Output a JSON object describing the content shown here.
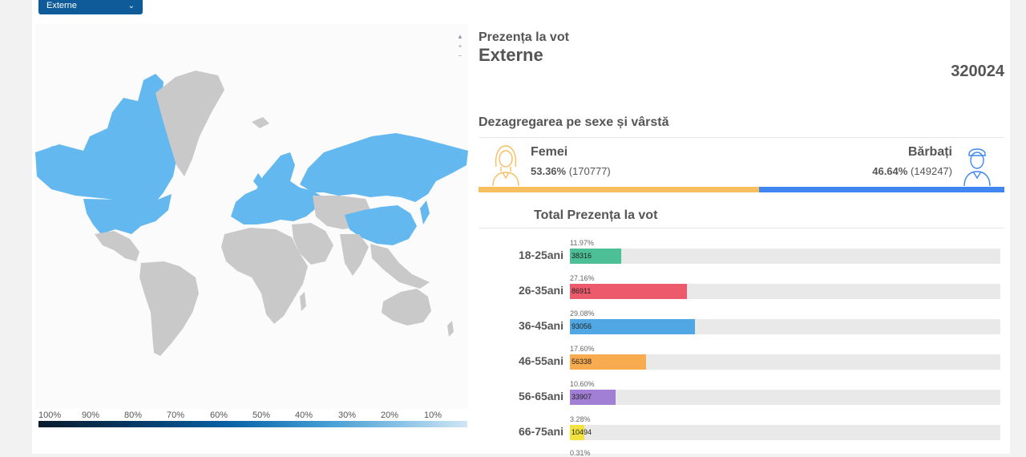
{
  "filter": {
    "selected": "Externe"
  },
  "header": {
    "title": "Prezența la vot",
    "subtitle": "Externe",
    "total": "320024"
  },
  "gender": {
    "section_title": "Dezagregarea pe sexe și vârstă",
    "female": {
      "label": "Femei",
      "pct": "53.36%",
      "count": "(170777)",
      "icon": "woman-avatar-icon",
      "color": "#f6be5e"
    },
    "male": {
      "label": "Bărbați",
      "pct": "46.64%",
      "count": "(149247)",
      "icon": "man-avatar-icon",
      "color": "#3f86f0"
    },
    "female_share": 53.36
  },
  "age": {
    "section_title": "Total Prezența la vot",
    "groups": [
      {
        "label": "18-25ani",
        "pct": "11.97%",
        "value": "38316",
        "share": 11.97,
        "color": "#4cbf97"
      },
      {
        "label": "26-35ani",
        "pct": "27.16%",
        "value": "86911",
        "share": 27.16,
        "color": "#ec5a6b"
      },
      {
        "label": "36-45ani",
        "pct": "29.08%",
        "value": "93056",
        "share": 29.08,
        "color": "#50a7e3"
      },
      {
        "label": "46-55ani",
        "pct": "17.60%",
        "value": "56338",
        "share": 17.6,
        "color": "#f9ab50"
      },
      {
        "label": "56-65ani",
        "pct": "10.60%",
        "value": "33907",
        "share": 10.6,
        "color": "#a17fd4"
      },
      {
        "label": "66-75ani",
        "pct": "3.28%",
        "value": "10494",
        "share": 3.28,
        "color": "#f2e23d"
      }
    ],
    "next_pct": "0.31%"
  },
  "map": {
    "legend": [
      "100%",
      "90%",
      "80%",
      "70%",
      "60%",
      "50%",
      "40%",
      "30%",
      "20%",
      "10%"
    ],
    "highlight_color": "#63b8f0",
    "base_color": "#c9c9c9",
    "zoom_controls": [
      "home-icon",
      "zoom-in-icon",
      "zoom-out-icon"
    ]
  }
}
